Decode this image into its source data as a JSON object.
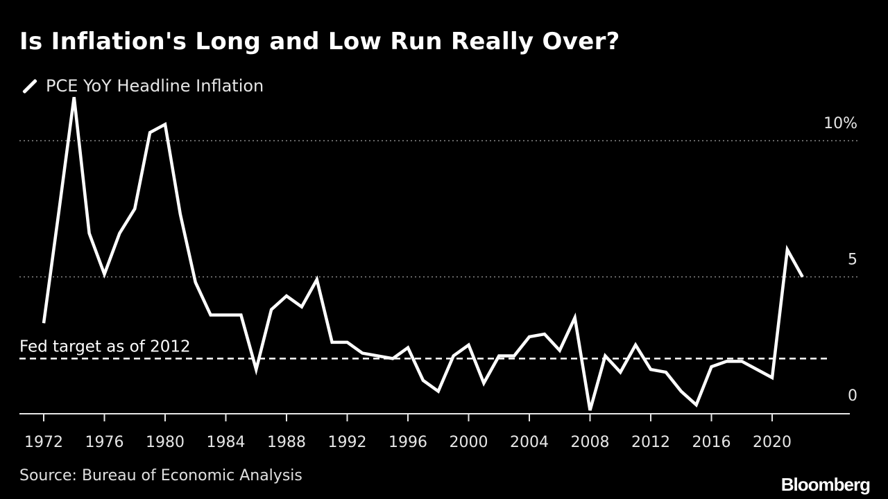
{
  "title": "Is Inflation's Long and Low Run Really Over?",
  "source": "Source: Bureau of Economic Analysis",
  "logo": "Bloomberg",
  "chart_data": {
    "type": "line",
    "title": "Is Inflation's Long and Low Run Really Over?",
    "legend": "top-left",
    "series": [
      {
        "name": "PCE YoY Headline Inflation",
        "color": "#ffffff",
        "x": [
          1972,
          1973,
          1974,
          1975,
          1976,
          1977,
          1978,
          1979,
          1980,
          1981,
          1982,
          1983,
          1984,
          1985,
          1986,
          1987,
          1988,
          1989,
          1990,
          1991,
          1992,
          1993,
          1994,
          1995,
          1996,
          1997,
          1998,
          1999,
          2000,
          2001,
          2002,
          2003,
          2004,
          2005,
          2006,
          2007,
          2008,
          2009,
          2010,
          2011,
          2012,
          2013,
          2014,
          2015,
          2016,
          2017,
          2018,
          2019,
          2020,
          2021,
          2022
        ],
        "values": [
          3.3,
          7.4,
          11.6,
          6.6,
          5.1,
          6.6,
          7.5,
          10.3,
          10.6,
          7.3,
          4.8,
          3.6,
          3.6,
          3.6,
          1.6,
          3.8,
          4.3,
          3.9,
          4.9,
          2.6,
          2.6,
          2.2,
          2.1,
          2.0,
          2.4,
          1.2,
          0.8,
          2.1,
          2.5,
          1.1,
          2.1,
          2.1,
          2.8,
          2.9,
          2.3,
          3.5,
          0.1,
          2.1,
          1.5,
          2.5,
          1.6,
          1.5,
          0.8,
          0.3,
          1.7,
          1.9,
          1.9,
          1.6,
          1.3,
          6.0,
          5.0
        ]
      }
    ],
    "xlim": [
      1970.5,
      2024.5
    ],
    "ylim": [
      -0.1,
      12
    ],
    "x_ticks": [
      "1972",
      "1976",
      "1980",
      "1984",
      "1988",
      "1992",
      "1996",
      "2000",
      "2004",
      "2008",
      "2012",
      "2016",
      "2020"
    ],
    "y_ticks": [
      {
        "value": 0,
        "label": "0"
      },
      {
        "value": 5,
        "label": "5"
      },
      {
        "value": 10,
        "label": "10%"
      }
    ],
    "y_axis_side": "right",
    "grid": "horizontal dotted",
    "annotation": {
      "label": "Fed target as of 2012",
      "value": 2
    }
  }
}
